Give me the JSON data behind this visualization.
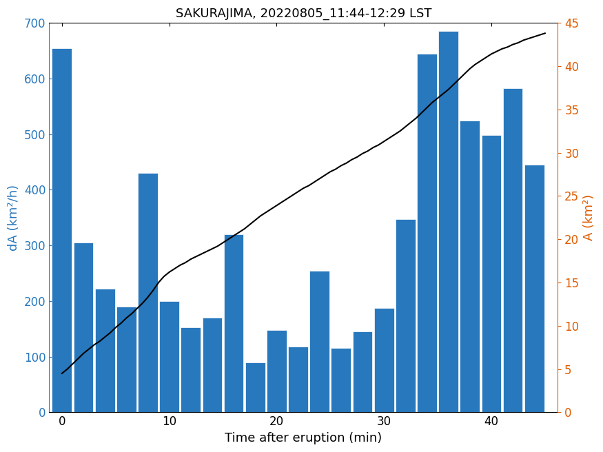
{
  "title": "SAKURAJIMA, 20220805_11:44-12:29 LST",
  "xlabel": "Time after eruption (min)",
  "ylabel_left": "dA (km²/h)",
  "ylabel_right": "A (km²)",
  "bar_x": [
    0,
    2,
    4,
    6,
    8,
    10,
    12,
    14,
    16,
    18,
    20,
    22,
    24,
    26,
    28,
    30,
    32,
    34,
    36,
    38,
    40,
    42,
    44
  ],
  "bar_heights": [
    655,
    305,
    222,
    190,
    430,
    200,
    153,
    170,
    320,
    90,
    148,
    118,
    254,
    116,
    145,
    187,
    347,
    645,
    685,
    525,
    498,
    583,
    445
  ],
  "bar_width": 1.85,
  "bar_color": "#2878BD",
  "bar_edgecolor": "white",
  "line_x": [
    0,
    0.5,
    1,
    1.5,
    2,
    2.5,
    3,
    3.5,
    4,
    4.5,
    5,
    5.5,
    6,
    6.5,
    7,
    7.5,
    8,
    8.5,
    9,
    9.5,
    10,
    10.5,
    11,
    11.5,
    12,
    12.5,
    13,
    13.5,
    14,
    14.5,
    15,
    15.5,
    16,
    16.5,
    17,
    17.5,
    18,
    18.5,
    19,
    19.5,
    20,
    20.5,
    21,
    21.5,
    22,
    22.5,
    23,
    23.5,
    24,
    24.5,
    25,
    25.5,
    26,
    26.5,
    27,
    27.5,
    28,
    28.5,
    29,
    29.5,
    30,
    30.5,
    31,
    31.5,
    32,
    32.5,
    33,
    33.5,
    34,
    34.5,
    35,
    35.5,
    36,
    36.5,
    37,
    37.5,
    38,
    38.5,
    39,
    39.5,
    40,
    40.5,
    41,
    41.5,
    42,
    42.5,
    43,
    43.5,
    44,
    44.5,
    45
  ],
  "line_y": [
    4.5,
    5.0,
    5.6,
    6.2,
    6.8,
    7.3,
    7.8,
    8.2,
    8.7,
    9.2,
    9.8,
    10.3,
    10.9,
    11.4,
    12.0,
    12.6,
    13.3,
    14.1,
    15.0,
    15.7,
    16.2,
    16.6,
    17.0,
    17.3,
    17.7,
    18.0,
    18.3,
    18.6,
    18.9,
    19.2,
    19.6,
    20.0,
    20.4,
    20.8,
    21.2,
    21.7,
    22.2,
    22.7,
    23.1,
    23.5,
    23.9,
    24.3,
    24.7,
    25.1,
    25.5,
    25.9,
    26.2,
    26.6,
    27.0,
    27.4,
    27.8,
    28.1,
    28.5,
    28.8,
    29.2,
    29.5,
    29.9,
    30.2,
    30.6,
    30.9,
    31.3,
    31.7,
    32.1,
    32.5,
    33.0,
    33.5,
    34.0,
    34.6,
    35.2,
    35.8,
    36.3,
    36.8,
    37.3,
    37.9,
    38.5,
    39.1,
    39.7,
    40.2,
    40.6,
    41.0,
    41.4,
    41.7,
    42.0,
    42.2,
    42.5,
    42.7,
    43.0,
    43.2,
    43.4,
    43.6,
    43.8
  ],
  "line_color": "black",
  "line_width": 1.5,
  "ylim_left": [
    0,
    700
  ],
  "ylim_right": [
    0,
    45
  ],
  "xlim": [
    -1.2,
    46.2
  ],
  "yticks_left": [
    0,
    100,
    200,
    300,
    400,
    500,
    600,
    700
  ],
  "yticks_right": [
    0,
    5,
    10,
    15,
    20,
    25,
    30,
    35,
    40,
    45
  ],
  "xticks": [
    0,
    10,
    20,
    30,
    40
  ],
  "left_label_color": "#2878BD",
  "right_label_color": "#E05C00",
  "title_fontsize": 13,
  "label_fontsize": 13,
  "tick_fontsize": 12,
  "figure_width": 8.75,
  "figure_height": 6.56,
  "dpi": 100
}
